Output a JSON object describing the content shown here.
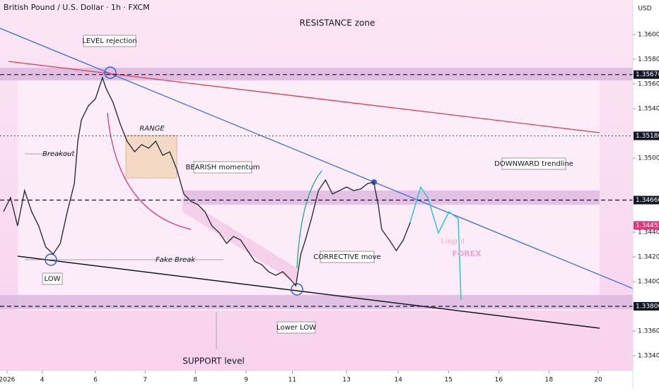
{
  "chart_data": {
    "type": "line",
    "title": "British Pound / U.S. Dollar · 1h · FXCM",
    "currency": "USD",
    "color": "#2a2e39",
    "ylim": [
      1.3328,
      1.3628
    ],
    "yticks": [
      {
        "value": 1.36,
        "label": "1.36000"
      },
      {
        "value": 1.358,
        "label": "1.35800"
      },
      {
        "value": 1.356,
        "label": "1.35600"
      },
      {
        "value": 1.354,
        "label": "1.35400"
      },
      {
        "value": 1.35,
        "label": "1.35000"
      },
      {
        "value": 1.344,
        "label": "1.34400"
      },
      {
        "value": 1.342,
        "label": "1.34200"
      },
      {
        "value": 1.34,
        "label": "1.34000"
      },
      {
        "value": 1.336,
        "label": "1.33600"
      },
      {
        "value": 1.334,
        "label": "1.33400"
      }
    ],
    "xlim": [
      -0.14,
      12.46
    ],
    "xticks": [
      {
        "value": 0,
        "label": "2026"
      },
      {
        "value": 0.7,
        "label": "4"
      },
      {
        "value": 1.76,
        "label": "6"
      },
      {
        "value": 2.75,
        "label": "7"
      },
      {
        "value": 3.75,
        "label": "8"
      },
      {
        "value": 4.76,
        "label": "9"
      },
      {
        "value": 5.68,
        "label": "11"
      },
      {
        "value": 6.76,
        "label": "13"
      },
      {
        "value": 7.79,
        "label": "14"
      },
      {
        "value": 8.79,
        "label": "15"
      },
      {
        "value": 9.79,
        "label": "16"
      },
      {
        "value": 10.79,
        "label": "18"
      },
      {
        "value": 11.77,
        "label": "20"
      }
    ],
    "x": [
      -0.07,
      0.07,
      0.21,
      0.35,
      0.49,
      0.63,
      0.77,
      0.92,
      1.06,
      1.2,
      1.34,
      1.41,
      1.48,
      1.62,
      1.76,
      1.9,
      1.97,
      2.11,
      2.25,
      2.39,
      2.54,
      2.68,
      2.82,
      2.96,
      3.1,
      3.24,
      3.38,
      3.52,
      3.66,
      3.8,
      3.94,
      4.08,
      4.23,
      4.37,
      4.51,
      4.65,
      4.79,
      4.93,
      5.07,
      5.21,
      5.35,
      5.49,
      5.63,
      5.75,
      5.85,
      5.94,
      6.06,
      6.2,
      6.34,
      6.48,
      6.62,
      6.76,
      6.9,
      7.04,
      7.18,
      7.3,
      7.39,
      7.46,
      7.61,
      7.75,
      7.89,
      8.03
    ],
    "values": [
      1.34566,
      1.3468,
      1.34451,
      1.34737,
      1.34566,
      1.34451,
      1.3428,
      1.34223,
      1.34309,
      1.34566,
      1.34794,
      1.35137,
      1.35309,
      1.35423,
      1.3548,
      1.35651,
      1.35566,
      1.35451,
      1.3528,
      1.35137,
      1.35051,
      1.35109,
      1.3508,
      1.35137,
      1.35023,
      1.35051,
      1.34909,
      1.34709,
      1.34651,
      1.34623,
      1.34566,
      1.34451,
      1.34394,
      1.34309,
      1.34366,
      1.34337,
      1.34251,
      1.34166,
      1.34137,
      1.3408,
      1.34051,
      1.3408,
      1.34023,
      1.33966,
      1.34223,
      1.34337,
      1.34509,
      1.34737,
      1.34823,
      1.34709,
      1.34737,
      1.34766,
      1.34737,
      1.34749,
      1.34794,
      1.34806,
      1.34623,
      1.34423,
      1.34337,
      1.34251,
      1.34337,
      1.3448
    ],
    "levels": [
      {
        "value": 1.35676,
        "label": "1.35676"
      },
      {
        "value": 1.3518,
        "label": "1.35180"
      },
      {
        "value": 1.3466,
        "label": "1.34660"
      },
      {
        "value": 1.338,
        "label": "1.33800"
      }
    ],
    "last_price": {
      "value": 1.34455,
      "label": "1.34455"
    },
    "annotations": {
      "resistance": "RESISTANCE zone",
      "rejection": "LEVEL rejection",
      "range": "RANGE",
      "breakout": "Breakout",
      "bearish": "BEARISH momentum",
      "trendline": "DOWNWARD trendline",
      "fake_break": "Fake Break",
      "corrective": "CORRECTIVE move",
      "low": "LOW",
      "lower_low": "Lower LOW",
      "support": "SUPPORT level",
      "brand": "Lingrid",
      "brand_sub": "FOREX"
    }
  }
}
